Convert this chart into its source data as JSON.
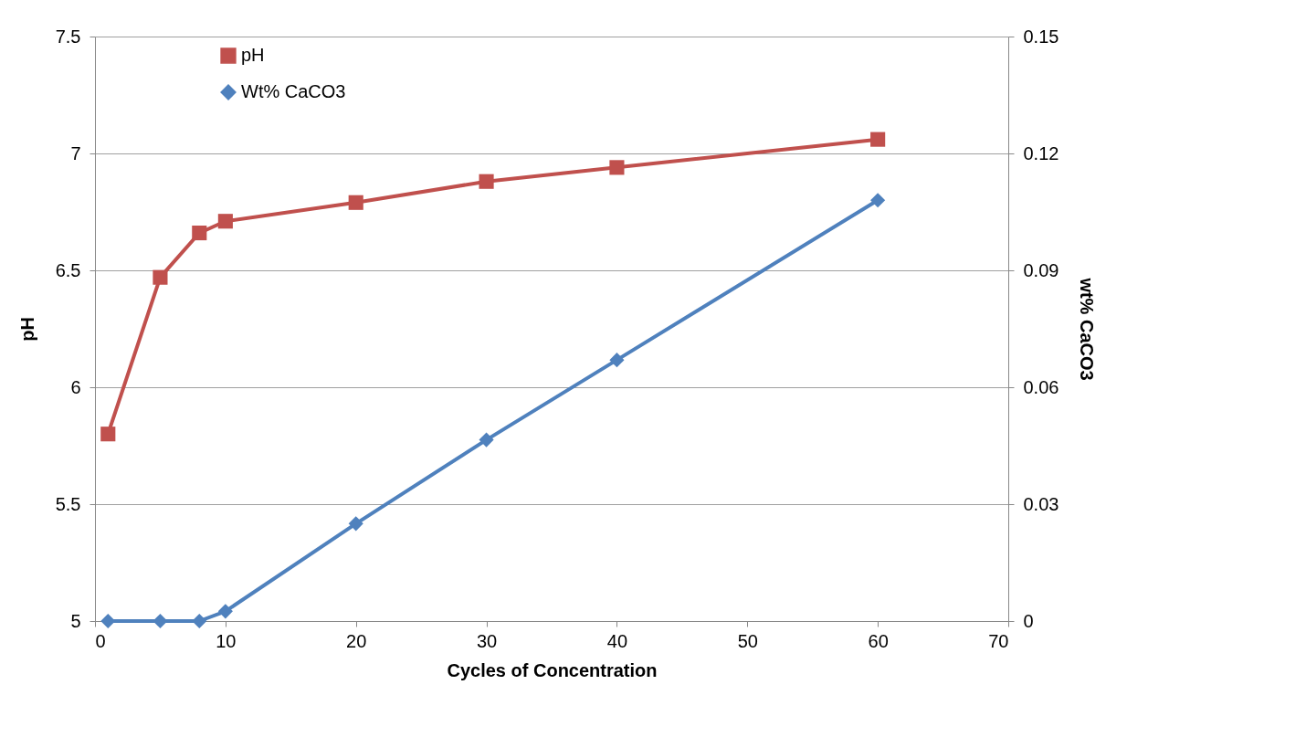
{
  "chart_data": {
    "type": "line",
    "xlabel": "Cycles of Concentration",
    "ylabel": "pH",
    "y2label": "wt% CaCO3",
    "x": [
      1,
      5,
      8,
      10,
      20,
      30,
      40,
      60
    ],
    "series": [
      {
        "name": "pH",
        "color": "#c0504d",
        "marker": "square",
        "values": [
          5.8,
          6.47,
          6.66,
          6.71,
          6.79,
          6.88,
          6.94,
          7.06
        ]
      },
      {
        "name": "Wt% CaCO3",
        "color": "#4f81bd",
        "marker": "diamond",
        "axis": "y2",
        "values": [
          0,
          0,
          0,
          0.0025,
          0.025,
          0.0465,
          0.067,
          0.108
        ]
      }
    ],
    "xlim": [
      0,
      70
    ],
    "xticks": [
      0,
      10,
      20,
      30,
      40,
      50,
      60,
      70
    ],
    "ylim": [
      5,
      7.5
    ],
    "yticks": [
      5,
      5.5,
      6,
      6.5,
      7,
      7.5
    ],
    "y2lim": [
      0,
      0.15
    ],
    "y2ticks": [
      0,
      0.03,
      0.06,
      0.09,
      0.12,
      0.15
    ],
    "grid": "y",
    "legend": "top left",
    "line_style": "solid"
  }
}
